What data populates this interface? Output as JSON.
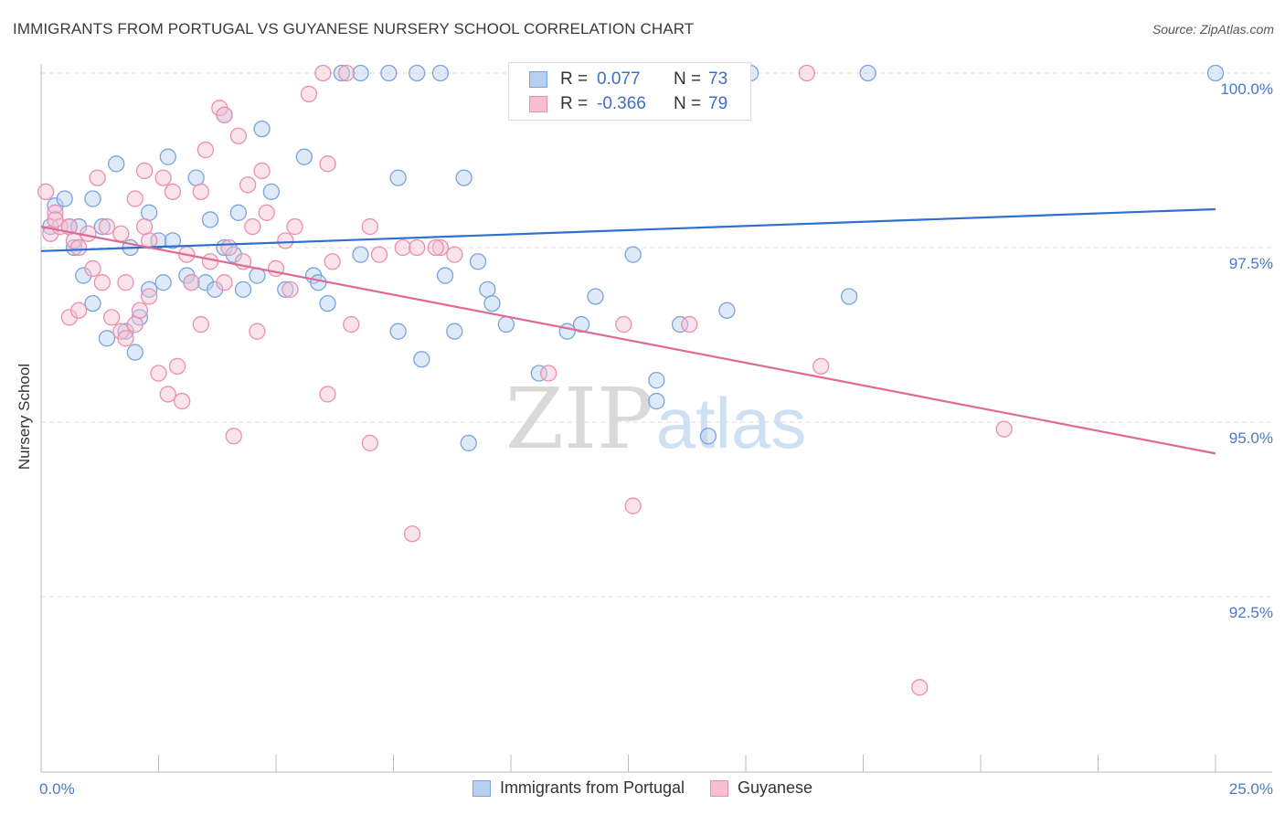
{
  "title": "IMMIGRANTS FROM PORTUGAL VS GUYANESE NURSERY SCHOOL CORRELATION CHART",
  "source": "Source: ZipAtlas.com",
  "watermark": {
    "zip": "ZIP",
    "atlas": "atlas"
  },
  "colors": {
    "blue_fill": "#b8d0f0",
    "blue_stroke": "#7aa3de",
    "blue_line": "#2f6fcf",
    "pink_fill": "#f7c0d2",
    "pink_stroke": "#eb8fae",
    "pink_line": "#e06a93",
    "accent_text": "#3c6fc4"
  },
  "stats": [
    {
      "r_label": "R =",
      "r_value": "0.077",
      "n_label": "N =",
      "n_value": "73",
      "series": "blue"
    },
    {
      "r_label": "R =",
      "r_value": "-0.366",
      "n_label": "N =",
      "n_value": "79",
      "series": "pink"
    }
  ],
  "legend": [
    {
      "label": "Immigrants from Portugal",
      "series": "blue"
    },
    {
      "label": "Guyanese",
      "series": "pink"
    }
  ],
  "chart_data": {
    "type": "scatter",
    "title": "IMMIGRANTS FROM PORTUGAL VS GUYANESE NURSERY SCHOOL CORRELATION CHART",
    "xlabel": "",
    "ylabel": "Nursery School",
    "xlim": [
      0,
      25
    ],
    "ylim": [
      90.25,
      100.2
    ],
    "x_tick_labels": [
      {
        "value": 0,
        "label": "0.0%"
      },
      {
        "value": 25,
        "label": "25.0%"
      }
    ],
    "y_tick_labels": [
      {
        "value": 100,
        "label": "100.0%"
      },
      {
        "value": 97.5,
        "label": "97.5%"
      },
      {
        "value": 95,
        "label": "95.0%"
      },
      {
        "value": 92.5,
        "label": "92.5%"
      }
    ],
    "grid": "horizontal dashed",
    "legend_position": "bottom-center",
    "series": [
      {
        "name": "Immigrants from Portugal",
        "color": "#7aa3de",
        "trend": {
          "x": [
            0,
            25
          ],
          "y": [
            97.45,
            98.05
          ]
        },
        "points": [
          [
            0.2,
            97.8
          ],
          [
            0.3,
            98.1
          ],
          [
            0.5,
            98.2
          ],
          [
            0.6,
            97.8
          ],
          [
            0.7,
            97.5
          ],
          [
            0.8,
            97.8
          ],
          [
            1.1,
            98.2
          ],
          [
            1.3,
            97.8
          ],
          [
            1.6,
            98.7
          ],
          [
            1.9,
            97.5
          ],
          [
            2.3,
            98.0
          ],
          [
            2.7,
            98.8
          ],
          [
            3.3,
            98.5
          ],
          [
            3.6,
            97.9
          ],
          [
            3.9,
            99.4
          ],
          [
            4.2,
            98.0
          ],
          [
            4.7,
            99.2
          ],
          [
            4.9,
            98.3
          ],
          [
            5.6,
            98.8
          ],
          [
            5.8,
            97.1
          ],
          [
            0.9,
            97.1
          ],
          [
            1.1,
            96.7
          ],
          [
            1.4,
            96.2
          ],
          [
            1.8,
            96.3
          ],
          [
            2.0,
            96.0
          ],
          [
            2.1,
            96.5
          ],
          [
            2.3,
            96.9
          ],
          [
            2.5,
            97.6
          ],
          [
            2.6,
            97.0
          ],
          [
            2.8,
            97.6
          ],
          [
            3.1,
            97.1
          ],
          [
            3.2,
            97.0
          ],
          [
            3.5,
            97.0
          ],
          [
            3.7,
            96.9
          ],
          [
            3.9,
            97.5
          ],
          [
            4.1,
            97.4
          ],
          [
            4.3,
            96.9
          ],
          [
            4.6,
            97.1
          ],
          [
            5.2,
            96.9
          ],
          [
            5.9,
            97.0
          ],
          [
            6.1,
            96.7
          ],
          [
            6.8,
            97.4
          ],
          [
            7.6,
            96.3
          ],
          [
            8.1,
            95.9
          ],
          [
            8.6,
            97.1
          ],
          [
            8.8,
            96.3
          ],
          [
            9.1,
            94.7
          ],
          [
            9.5,
            96.9
          ],
          [
            9.6,
            96.7
          ],
          [
            9.9,
            96.4
          ],
          [
            10.6,
            95.7
          ],
          [
            11.2,
            96.3
          ],
          [
            11.5,
            96.4
          ],
          [
            11.8,
            96.8
          ],
          [
            12.6,
            97.4
          ],
          [
            13.1,
            95.6
          ],
          [
            13.1,
            95.3
          ],
          [
            13.6,
            96.4
          ],
          [
            14.2,
            94.8
          ],
          [
            14.6,
            96.6
          ],
          [
            15.1,
            100.0
          ],
          [
            17.2,
            96.8
          ],
          [
            17.6,
            100.0
          ],
          [
            6.4,
            100.0
          ],
          [
            6.8,
            100.0
          ],
          [
            7.4,
            100.0
          ],
          [
            8.0,
            100.0
          ],
          [
            8.5,
            100.0
          ],
          [
            9.0,
            98.5
          ],
          [
            9.3,
            97.3
          ],
          [
            10.6,
            100.0
          ],
          [
            25.0,
            100.0
          ],
          [
            7.6,
            98.5
          ]
        ]
      },
      {
        "name": "Guyanese",
        "color": "#eb8fae",
        "trend": {
          "x": [
            0,
            25
          ],
          "y": [
            97.8,
            94.55
          ]
        },
        "points": [
          [
            0.2,
            97.7
          ],
          [
            0.3,
            98.0
          ],
          [
            0.4,
            97.8
          ],
          [
            0.6,
            97.8
          ],
          [
            0.7,
            97.6
          ],
          [
            0.8,
            97.5
          ],
          [
            1.0,
            97.7
          ],
          [
            1.2,
            98.5
          ],
          [
            1.4,
            97.8
          ],
          [
            1.7,
            97.7
          ],
          [
            1.8,
            97.0
          ],
          [
            2.0,
            98.2
          ],
          [
            2.2,
            98.6
          ],
          [
            2.3,
            97.6
          ],
          [
            2.6,
            98.5
          ],
          [
            2.8,
            98.3
          ],
          [
            3.1,
            97.4
          ],
          [
            3.4,
            98.3
          ],
          [
            3.5,
            98.9
          ],
          [
            3.8,
            99.5
          ],
          [
            3.9,
            99.4
          ],
          [
            4.2,
            99.1
          ],
          [
            4.4,
            98.4
          ],
          [
            4.5,
            97.8
          ],
          [
            4.7,
            98.6
          ],
          [
            4.8,
            98.0
          ],
          [
            5.2,
            97.6
          ],
          [
            5.4,
            97.8
          ],
          [
            5.7,
            99.7
          ],
          [
            6.1,
            98.7
          ],
          [
            6.2,
            97.3
          ],
          [
            7.0,
            97.8
          ],
          [
            7.2,
            97.4
          ],
          [
            7.7,
            97.5
          ],
          [
            8.0,
            97.5
          ],
          [
            0.6,
            96.5
          ],
          [
            0.8,
            96.6
          ],
          [
            1.1,
            97.2
          ],
          [
            1.3,
            97.0
          ],
          [
            1.5,
            96.5
          ],
          [
            1.7,
            96.3
          ],
          [
            1.8,
            96.2
          ],
          [
            2.0,
            96.4
          ],
          [
            2.1,
            96.6
          ],
          [
            2.3,
            96.8
          ],
          [
            2.5,
            95.7
          ],
          [
            2.7,
            95.4
          ],
          [
            2.9,
            95.8
          ],
          [
            3.0,
            95.3
          ],
          [
            3.2,
            97.0
          ],
          [
            3.4,
            96.4
          ],
          [
            3.6,
            97.3
          ],
          [
            3.9,
            97.0
          ],
          [
            4.1,
            94.8
          ],
          [
            4.3,
            97.3
          ],
          [
            4.6,
            96.3
          ],
          [
            5.0,
            97.2
          ],
          [
            5.3,
            96.9
          ],
          [
            6.1,
            95.4
          ],
          [
            6.6,
            96.4
          ],
          [
            7.0,
            94.7
          ],
          [
            7.9,
            93.4
          ],
          [
            8.5,
            97.5
          ],
          [
            8.8,
            97.4
          ],
          [
            10.8,
            95.7
          ],
          [
            12.4,
            96.4
          ],
          [
            12.6,
            93.8
          ],
          [
            13.8,
            96.4
          ],
          [
            16.3,
            100.0
          ],
          [
            16.6,
            95.8
          ],
          [
            18.7,
            91.2
          ],
          [
            20.5,
            94.9
          ],
          [
            0.1,
            98.3
          ],
          [
            6.0,
            100.0
          ],
          [
            6.5,
            100.0
          ],
          [
            8.4,
            97.5
          ],
          [
            0.3,
            97.9
          ],
          [
            4.0,
            97.5
          ],
          [
            2.2,
            97.8
          ]
        ]
      }
    ]
  }
}
